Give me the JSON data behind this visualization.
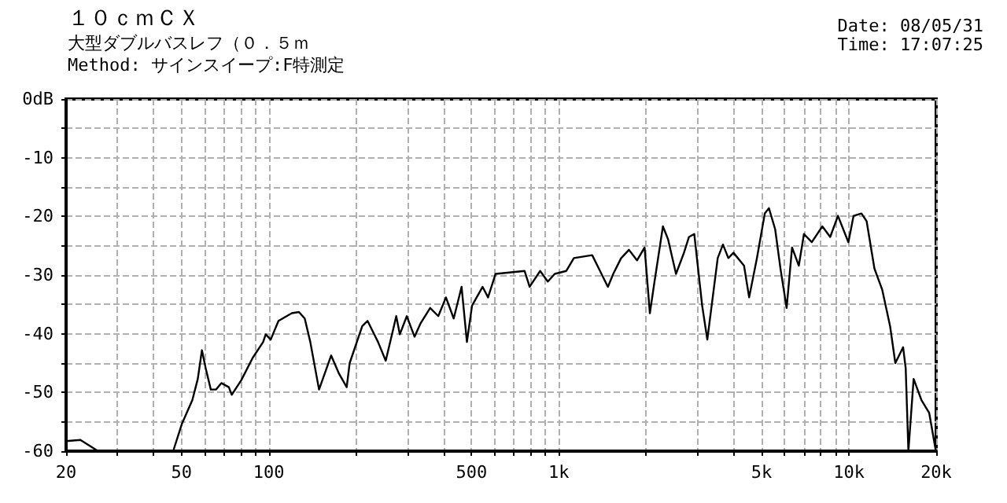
{
  "chart_data": {
    "type": "line",
    "title": "１０ｃｍＣＸ",
    "subtitle": "大型ダブルバスレフ（０．５ｍ",
    "annotations": [
      "Method: サインスイープ:F特測定",
      "Date: 08/05/31",
      "Time: 17:07:25"
    ],
    "log": "x",
    "grid": true,
    "marker": "none",
    "line_style": "solid",
    "xlim": [
      20,
      20000
    ],
    "xticks": [
      20,
      {
        "value": 30,
        "label": null
      },
      {
        "value": 40,
        "label": null
      },
      50,
      {
        "value": 60,
        "label": null
      },
      {
        "value": 70,
        "label": null
      },
      {
        "value": 80,
        "label": null
      },
      {
        "value": 90,
        "label": null
      },
      100,
      {
        "value": 200,
        "label": null
      },
      {
        "value": 300,
        "label": null
      },
      {
        "value": 400,
        "label": null
      },
      500,
      {
        "value": 600,
        "label": null
      },
      {
        "value": 700,
        "label": null
      },
      {
        "value": 800,
        "label": null
      },
      {
        "value": 900,
        "label": null
      },
      {
        "value": 1000,
        "label": "1k"
      },
      {
        "value": 2000,
        "label": null
      },
      {
        "value": 3000,
        "label": null
      },
      {
        "value": 4000,
        "label": null
      },
      {
        "value": 5000,
        "label": "5k"
      },
      {
        "value": 6000,
        "label": null
      },
      {
        "value": 7000,
        "label": null
      },
      {
        "value": 8000,
        "label": null
      },
      {
        "value": 9000,
        "label": null
      },
      {
        "value": 10000,
        "label": "10k"
      },
      {
        "value": 20000,
        "label": "20k"
      }
    ],
    "ylim": [
      -60,
      0
    ],
    "yticks": [
      -60,
      {
        "value": -55,
        "label": null
      },
      -50,
      {
        "value": -45,
        "label": null
      },
      -40,
      {
        "value": -35,
        "label": null
      },
      -30,
      {
        "value": -25,
        "label": null
      },
      -20,
      {
        "value": -15,
        "label": null
      },
      -10,
      {
        "value": -5,
        "label": null
      },
      {
        "value": 0,
        "label": "0dB"
      }
    ],
    "series": [
      {
        "color": "#000000",
        "x": [
          20,
          22.4,
          25.8,
          46.8,
          50.2,
          54.5,
          56.9,
          58.8,
          60.6,
          63.1,
          65.8,
          68.6,
          72.8,
          74.5,
          80.4,
          88,
          95.6,
          97.6,
          101.5,
          108,
          120,
          127,
          133,
          139,
          149,
          164,
          174.6,
          185.6,
          190,
          210,
          219,
          238,
          253,
          270,
          275,
          283,
          299,
          318,
          333,
          360,
          384,
          408,
          434,
          462,
          482,
          502,
          546,
          570,
          605,
          762,
          793,
          862,
          916,
          968,
          1060,
          1127,
          1303,
          1476,
          1540,
          1640,
          1745,
          1860,
          1975,
          2060,
          2130,
          2285,
          2380,
          2535,
          2700,
          2810,
          2930,
          3120,
          3250,
          3530,
          3680,
          3840,
          4000,
          4350,
          4530,
          4820,
          5130,
          5300,
          5570,
          5810,
          6100,
          6370,
          6720,
          7000,
          7450,
          8100,
          8620,
          9170,
          9960,
          10380,
          11050,
          11510,
          12250,
          13030,
          13870,
          14460,
          15380,
          15700,
          16040,
          16720,
          17790,
          18920,
          19950
        ],
        "values": [
          -58.3,
          -58.1,
          -60,
          -60,
          -55.3,
          -51.3,
          -47.7,
          -42.8,
          -45.9,
          -49.5,
          -49.5,
          -48.4,
          -49.1,
          -50.4,
          -47.9,
          -44.1,
          -41.4,
          -40.1,
          -41,
          -37.8,
          -36.5,
          -36.3,
          -37.4,
          -41.4,
          -49.5,
          -43.7,
          -46.8,
          -49.1,
          -45,
          -38.7,
          -37.8,
          -41.4,
          -44.6,
          -38.7,
          -37,
          -40.1,
          -37,
          -40.5,
          -38.3,
          -35.6,
          -37,
          -33.8,
          -37.4,
          -32,
          -41.4,
          -35.2,
          -32,
          -33.8,
          -29.8,
          -29.3,
          -32,
          -29.3,
          -31.1,
          -29.8,
          -29.3,
          -27.1,
          -26.6,
          -32,
          -29.8,
          -27.1,
          -25.7,
          -27.5,
          -25.3,
          -36.5,
          -31.6,
          -21.7,
          -23.9,
          -29.8,
          -26.2,
          -23.5,
          -23,
          -35.2,
          -41,
          -27.1,
          -24.8,
          -27.1,
          -26.2,
          -28.4,
          -33.8,
          -27.1,
          -19.5,
          -18.6,
          -22.2,
          -28.9,
          -35.6,
          -25.3,
          -28.4,
          -23,
          -24.4,
          -21.7,
          -23.5,
          -19.9,
          -24.4,
          -19.9,
          -19.5,
          -20.8,
          -28.9,
          -32.5,
          -38.7,
          -45,
          -42.3,
          -45.9,
          -60,
          -47.7,
          -51.3,
          -53.5,
          -60
        ]
      }
    ]
  }
}
